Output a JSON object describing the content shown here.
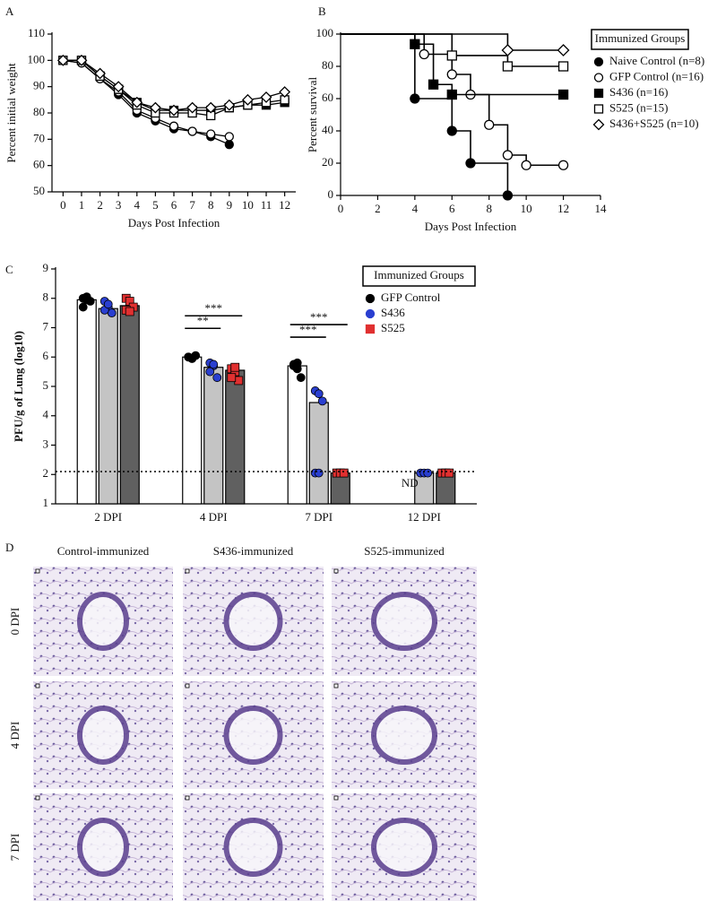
{
  "chart_data": [
    {
      "label": "A",
      "type": "line",
      "xlabel": "Days Post Infection",
      "ylabel": "Percent initial weight",
      "x": [
        0,
        1,
        2,
        3,
        4,
        5,
        6,
        7,
        8,
        9,
        10,
        11,
        12
      ],
      "xlim": [
        -0.6,
        12.6
      ],
      "xticks": [
        0,
        1,
        2,
        3,
        4,
        5,
        6,
        7,
        8,
        9,
        10,
        11,
        12
      ],
      "ylim": [
        50,
        110
      ],
      "yticks": [
        50,
        60,
        70,
        80,
        90,
        100,
        110
      ],
      "series": [
        {
          "marker": "circle-filled",
          "color": "#000000",
          "values": [
            100,
            99,
            93,
            87,
            80,
            77,
            74,
            73,
            71,
            68,
            null,
            null,
            null
          ]
        },
        {
          "marker": "circle-open",
          "color": "#000000",
          "values": [
            100,
            99,
            93,
            88,
            81,
            78,
            75,
            73,
            72,
            71,
            null,
            null,
            null
          ]
        },
        {
          "marker": "square-filled",
          "color": "#000000",
          "values": [
            100,
            100,
            94,
            89,
            84,
            81,
            81,
            81,
            81,
            82,
            83,
            83,
            84
          ]
        },
        {
          "marker": "square-open",
          "color": "#000000",
          "values": [
            100,
            100,
            94,
            89,
            83,
            80,
            80,
            80,
            79,
            82,
            83,
            84,
            85
          ]
        },
        {
          "marker": "diamond-open",
          "color": "#000000",
          "values": [
            100,
            100,
            95,
            90,
            84,
            82,
            81,
            82,
            82,
            83,
            85,
            86,
            88
          ]
        }
      ]
    },
    {
      "label": "B",
      "type": "step",
      "xlabel": "Days Post Infection",
      "ylabel": "Percent survival",
      "xlim": [
        0,
        14
      ],
      "xticks": [
        0,
        2,
        4,
        6,
        8,
        10,
        12,
        14
      ],
      "ylim": [
        0,
        100
      ],
      "yticks": [
        0,
        20,
        40,
        60,
        80,
        100
      ],
      "legend_title": "Immunized Groups",
      "legend_position": "right",
      "series": [
        {
          "name": "Naive Control (n=8)",
          "marker": "circle-filled",
          "color": "#000000",
          "x": [
            0,
            4,
            6,
            7,
            9
          ],
          "values": [
            100,
            60,
            40,
            20,
            0
          ]
        },
        {
          "name": "GFP Control (n=16)",
          "marker": "circle-open",
          "color": "#000000",
          "x": [
            0,
            4.5,
            6,
            7,
            8,
            9,
            10,
            12
          ],
          "values": [
            100,
            87.5,
            75,
            62.5,
            43.75,
            25,
            18.75,
            18.75
          ]
        },
        {
          "name": "S436 (n=16)",
          "marker": "square-filled",
          "color": "#000000",
          "x": [
            0,
            4,
            5,
            6,
            12
          ],
          "values": [
            100,
            93.75,
            68.75,
            62.5,
            62.5
          ]
        },
        {
          "name": "S525 (n=15)",
          "marker": "square-open",
          "color": "#000000",
          "x": [
            0,
            6,
            9,
            12
          ],
          "values": [
            100,
            86.7,
            80,
            80
          ]
        },
        {
          "name": "S436+S525 (n=10)",
          "marker": "diamond-open",
          "color": "#000000",
          "x": [
            0,
            9,
            12
          ],
          "values": [
            100,
            90,
            90
          ]
        }
      ]
    },
    {
      "label": "C",
      "type": "bar",
      "ylabel": "PFU/g of Lung (log10)",
      "categories": [
        "2 DPI",
        "4 DPI",
        "7 DPI",
        "12 DPI"
      ],
      "ylim": [
        1,
        9
      ],
      "yticks": [
        1,
        2,
        3,
        4,
        5,
        6,
        7,
        8,
        9
      ],
      "reference_line": 2.1,
      "legend_title": "Immunized Groups",
      "legend_position": "top-right",
      "series": [
        {
          "name": "GFP Control",
          "color": "#ffffff",
          "marker": "circle-filled",
          "marker_color": "#000000",
          "values": [
            7.95,
            6.0,
            5.7,
            null
          ],
          "points": [
            [
              8.0,
              7.95,
              7.9,
              7.7,
              8.05
            ],
            [
              6.0,
              5.95,
              6.05,
              6.0,
              5.95
            ],
            [
              5.7,
              5.8,
              5.3,
              5.75,
              5.6
            ],
            []
          ]
        },
        {
          "name": "S436",
          "color": "#c4c4c4",
          "marker": "circle-filled",
          "marker_color": "#2a3fd0",
          "values": [
            7.65,
            5.65,
            4.45,
            2.05
          ],
          "points": [
            [
              7.9,
              7.7,
              7.5,
              7.6,
              7.8
            ],
            [
              5.8,
              5.7,
              5.3,
              5.5,
              5.75
            ],
            [
              4.85,
              4.75,
              4.5,
              2.05,
              2.05
            ],
            [
              2.05,
              2.05,
              2.05
            ]
          ]
        },
        {
          "name": "S525",
          "color": "#606060",
          "marker": "square-filled",
          "marker_color": "#e03030",
          "values": [
            7.75,
            5.55,
            2.05,
            2.05
          ],
          "points": [
            [
              8.0,
              7.9,
              7.7,
              7.6,
              7.55
            ],
            [
              5.6,
              5.5,
              5.2,
              5.3,
              5.65
            ],
            [
              2.05,
              2.05,
              2.05
            ],
            [
              2.05,
              2.05,
              2.05
            ]
          ]
        }
      ],
      "annotations": [
        {
          "category": 3,
          "text": "ND"
        }
      ],
      "significance": [
        {
          "category": 1,
          "from": 0,
          "to": 1,
          "label": "**"
        },
        {
          "category": 1,
          "from": 0,
          "to": 2,
          "label": "***"
        },
        {
          "category": 2,
          "from": 0,
          "to": 1,
          "label": "***"
        },
        {
          "category": 2,
          "from": 0,
          "to": 2,
          "label": "***"
        }
      ]
    }
  ],
  "histology": {
    "label": "D",
    "columns": [
      "Control-immunized",
      "S436-immunized",
      "S525-immunized"
    ],
    "rows": [
      "0 DPI",
      "4 DPI",
      "7 DPI"
    ]
  }
}
